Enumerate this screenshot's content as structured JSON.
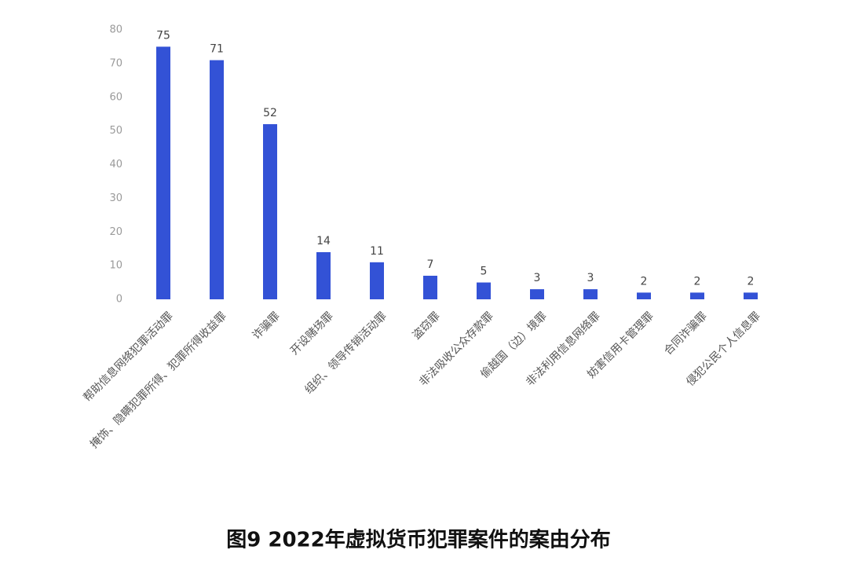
{
  "chart_data": {
    "type": "bar",
    "title": "图9  2022年虚拟货币犯罪案件的案由分布",
    "categories": [
      "帮助信息网络犯罪活动罪",
      "掩饰、隐瞒犯罪所得、犯罪所得收益罪",
      "诈骗罪",
      "开设赌场罪",
      "组织、领导传销活动罪",
      "盗窃罪",
      "非法吸收公众存款罪",
      "偷越国（边）境罪",
      "非法利用信息网络罪",
      "妨害信用卡管理罪",
      "合同诈骗罪",
      "侵犯公民个人信息罪"
    ],
    "values": [
      75,
      71,
      52,
      14,
      11,
      7,
      5,
      3,
      3,
      2,
      2,
      2
    ],
    "color": "#3352d6",
    "ylim": [
      0,
      80
    ],
    "yticks": [
      0,
      10,
      20,
      30,
      40,
      50,
      60,
      70,
      80
    ],
    "grid": false
  }
}
